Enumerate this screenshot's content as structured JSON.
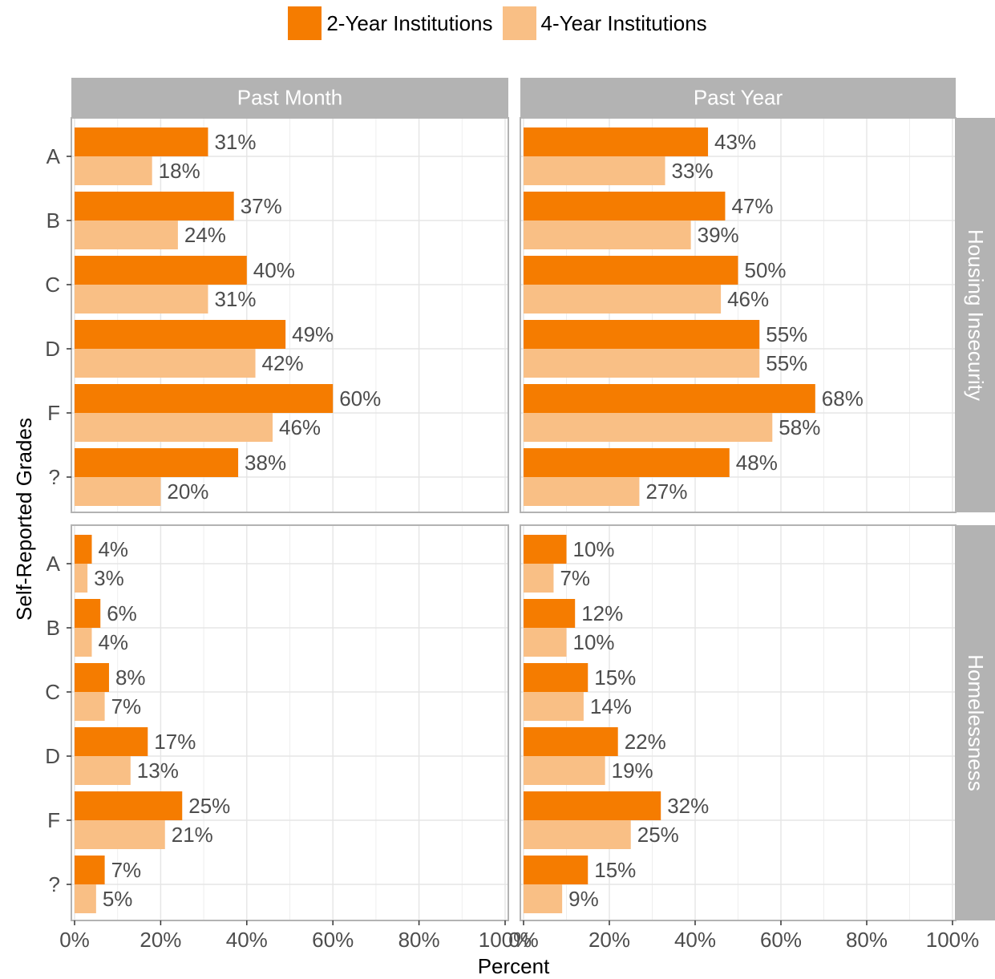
{
  "chart_data": {
    "type": "bar",
    "orientation": "horizontal",
    "ylabel": "Self-Reported Grades",
    "xlabel": "Percent",
    "xlim": [
      0,
      100
    ],
    "x_ticks": [
      "0%",
      "20%",
      "40%",
      "60%",
      "80%",
      "100%"
    ],
    "categories": [
      "A",
      "B",
      "C",
      "D",
      "F",
      "?"
    ],
    "columns": [
      "Past Month",
      "Past Year"
    ],
    "rows": [
      "Housing Insecurity",
      "Homelessness"
    ],
    "legend": {
      "position": "top",
      "entries": [
        "2-Year Institutions",
        "4-Year Institutions"
      ]
    },
    "colors": {
      "two_year": "#F57C00",
      "four_year": "#F9BF85",
      "strip_bg": "#B3B3B3",
      "strip_text": "#FFFFFF",
      "grid": "#E5E5E5",
      "panel_border": "#B3B3B3",
      "label_text": "#4D4D4D"
    },
    "panels": [
      {
        "row": "Housing Insecurity",
        "col": "Past Month",
        "series": [
          {
            "name": "2-Year Institutions",
            "values": [
              31,
              37,
              40,
              49,
              60,
              38
            ]
          },
          {
            "name": "4-Year Institutions",
            "values": [
              18,
              24,
              31,
              42,
              46,
              20
            ]
          }
        ]
      },
      {
        "row": "Housing Insecurity",
        "col": "Past Year",
        "series": [
          {
            "name": "2-Year Institutions",
            "values": [
              43,
              47,
              50,
              55,
              68,
              48
            ]
          },
          {
            "name": "4-Year Institutions",
            "values": [
              33,
              39,
              46,
              55,
              58,
              27
            ]
          }
        ]
      },
      {
        "row": "Homelessness",
        "col": "Past Month",
        "series": [
          {
            "name": "2-Year Institutions",
            "values": [
              4,
              6,
              8,
              17,
              25,
              7
            ]
          },
          {
            "name": "4-Year Institutions",
            "values": [
              3,
              4,
              7,
              13,
              21,
              5
            ]
          }
        ]
      },
      {
        "row": "Homelessness",
        "col": "Past Year",
        "series": [
          {
            "name": "2-Year Institutions",
            "values": [
              10,
              12,
              15,
              22,
              32,
              15
            ]
          },
          {
            "name": "4-Year Institutions",
            "values": [
              7,
              10,
              14,
              19,
              25,
              9
            ]
          }
        ]
      }
    ]
  }
}
